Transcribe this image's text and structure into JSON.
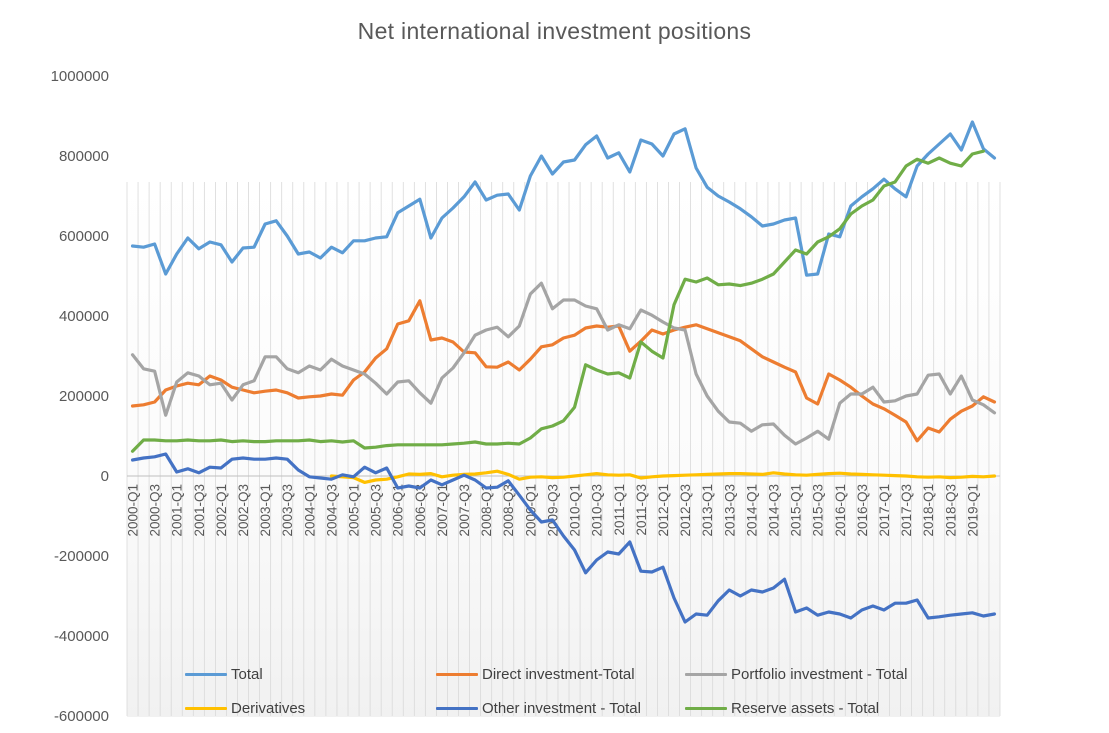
{
  "chart_data": {
    "type": "line",
    "title": "Net international investment positions",
    "xlabel": "",
    "ylabel": "",
    "ylim": [
      -600000,
      1000000
    ],
    "yticks": [
      -600000,
      -400000,
      -200000,
      0,
      200000,
      400000,
      600000,
      800000,
      1000000
    ],
    "ytick_labels": [
      "-600000",
      "-400000",
      "-200000",
      "0",
      "200000",
      "400000",
      "600000",
      "800000",
      "1000000"
    ],
    "grid": "vertical lines at each category",
    "legend_position": "bottom",
    "x": [
      "2000-Q1",
      "2000-Q2",
      "2000-Q3",
      "2000-Q4",
      "2001-Q1",
      "2001-Q2",
      "2001-Q3",
      "2001-Q4",
      "2002-Q1",
      "2002-Q2",
      "2002-Q3",
      "2002-Q4",
      "2003-Q1",
      "2003-Q2",
      "2003-Q3",
      "2003-Q4",
      "2004-Q1",
      "2004-Q2",
      "2004-Q3",
      "2004-Q4",
      "2005-Q1",
      "2005-Q2",
      "2005-Q3",
      "2005-Q4",
      "2006-Q1",
      "2006-Q2",
      "2006-Q3",
      "2006-Q4",
      "2007-Q1",
      "2007-Q2",
      "2007-Q3",
      "2007-Q4",
      "2008-Q1",
      "2008-Q2",
      "2008-Q3",
      "2008-Q4",
      "2009-Q1",
      "2009-Q2",
      "2009-Q3",
      "2009-Q4",
      "2010-Q1",
      "2010-Q2",
      "2010-Q3",
      "2010-Q4",
      "2011-Q1",
      "2011-Q2",
      "2011-Q3",
      "2011-Q4",
      "2012-Q1",
      "2012-Q2",
      "2012-Q3",
      "2012-Q4",
      "2013-Q1",
      "2013-Q2",
      "2013-Q3",
      "2013-Q4",
      "2014-Q1",
      "2014-Q2",
      "2014-Q3",
      "2014-Q4",
      "2015-Q1",
      "2015-Q2",
      "2015-Q3",
      "2015-Q4",
      "2016-Q1",
      "2016-Q2",
      "2016-Q3",
      "2016-Q4",
      "2017-Q1",
      "2017-Q2",
      "2017-Q3",
      "2017-Q4",
      "2018-Q1",
      "2018-Q2",
      "2018-Q3",
      "2018-Q4",
      "2019-Q1",
      "2019-Q2",
      "2019-Q3"
    ],
    "x_tick_labels": [
      "2000-Q1",
      "2000-Q3",
      "2001-Q1",
      "2001-Q3",
      "2002-Q1",
      "2002-Q3",
      "2003-Q1",
      "2003-Q3",
      "2004-Q1",
      "2004-Q3",
      "2005-Q1",
      "2005-Q3",
      "2006-Q1",
      "2006-Q3",
      "2007-Q1",
      "2007-Q3",
      "2008-Q1",
      "2008-Q3",
      "2009-Q1",
      "2009-Q3",
      "2010-Q1",
      "2010-Q3",
      "2011-Q1",
      "2011-Q3",
      "2012-Q1",
      "2012-Q3",
      "2013-Q1",
      "2013-Q3",
      "2014-Q1",
      "2014-Q3",
      "2015-Q1",
      "2015-Q3",
      "2016-Q1",
      "2016-Q3",
      "2017-Q1",
      "2017-Q3",
      "2018-Q1",
      "2018-Q3",
      "2019-Q1"
    ],
    "series": [
      {
        "name": "Total",
        "color": "#5b9bd5",
        "values": [
          575000,
          572000,
          580000,
          505000,
          555000,
          595000,
          568000,
          585000,
          578000,
          535000,
          570000,
          572000,
          630000,
          638000,
          600000,
          555000,
          560000,
          545000,
          572000,
          558000,
          588000,
          588000,
          595000,
          598000,
          658000,
          675000,
          692000,
          595000,
          645000,
          670000,
          698000,
          735000,
          690000,
          702000,
          705000,
          665000,
          750000,
          800000,
          755000,
          785000,
          790000,
          828000,
          850000,
          795000,
          808000,
          760000,
          840000,
          830000,
          800000,
          855000,
          868000,
          770000,
          722000,
          700000,
          685000,
          668000,
          648000,
          625000,
          630000,
          640000,
          645000,
          502000,
          505000,
          605000,
          598000,
          675000,
          698000,
          718000,
          742000,
          718000,
          698000,
          775000,
          805000,
          830000,
          855000,
          815000,
          885000,
          818000,
          795000
        ]
      },
      {
        "name": "Direct investment-Total",
        "color": "#ed7d31",
        "values": [
          175000,
          178000,
          185000,
          215000,
          225000,
          232000,
          228000,
          250000,
          240000,
          222000,
          215000,
          208000,
          212000,
          215000,
          208000,
          195000,
          198000,
          200000,
          205000,
          202000,
          240000,
          260000,
          295000,
          318000,
          380000,
          388000,
          438000,
          340000,
          345000,
          335000,
          310000,
          308000,
          273000,
          272000,
          285000,
          265000,
          292000,
          323000,
          328000,
          345000,
          352000,
          370000,
          375000,
          372000,
          375000,
          312000,
          337000,
          365000,
          355000,
          365000,
          372000,
          378000,
          368000,
          358000,
          348000,
          338000,
          318000,
          298000,
          285000,
          272000,
          260000,
          195000,
          180000,
          255000,
          240000,
          222000,
          200000,
          180000,
          168000,
          152000,
          135000,
          88000,
          120000,
          110000,
          142000,
          162000,
          175000,
          198000,
          185000
        ]
      },
      {
        "name": "Portfolio investment - Total",
        "color": "#a5a5a5",
        "values": [
          303000,
          268000,
          262000,
          152000,
          235000,
          258000,
          250000,
          228000,
          232000,
          190000,
          228000,
          238000,
          298000,
          298000,
          268000,
          258000,
          275000,
          265000,
          292000,
          275000,
          265000,
          255000,
          232000,
          205000,
          235000,
          238000,
          208000,
          182000,
          245000,
          270000,
          308000,
          352000,
          365000,
          372000,
          348000,
          375000,
          455000,
          482000,
          418000,
          440000,
          440000,
          425000,
          418000,
          365000,
          378000,
          368000,
          415000,
          402000,
          385000,
          370000,
          365000,
          255000,
          200000,
          162000,
          135000,
          132000,
          112000,
          128000,
          130000,
          102000,
          80000,
          95000,
          112000,
          92000,
          182000,
          205000,
          205000,
          222000,
          185000,
          188000,
          200000,
          205000,
          252000,
          255000,
          205000,
          250000,
          190000,
          178000,
          158000
        ]
      },
      {
        "name": "Derivatives",
        "color": "#ffc000",
        "values": [
          null,
          null,
          null,
          null,
          null,
          null,
          null,
          null,
          null,
          null,
          null,
          null,
          null,
          null,
          null,
          null,
          null,
          null,
          0,
          -2000,
          -4000,
          -16000,
          -10000,
          -8000,
          -2000,
          5000,
          4000,
          6000,
          -2000,
          2000,
          4000,
          5000,
          8000,
          12000,
          4000,
          -8000,
          -3000,
          -2000,
          -4000,
          -3000,
          0,
          3000,
          6000,
          3000,
          2000,
          3000,
          -5000,
          -2000,
          0,
          1000,
          2000,
          3000,
          4000,
          5000,
          6000,
          6000,
          5000,
          4000,
          8000,
          5000,
          3000,
          2000,
          4000,
          6000,
          7000,
          5000,
          4000,
          3000,
          2000,
          1000,
          0,
          -2000,
          -3000,
          -2000,
          -4000,
          -3000,
          -1000,
          -2000,
          0
        ]
      },
      {
        "name": "Other investment - Total",
        "color": "#4472c4",
        "values": [
          40000,
          45000,
          48000,
          55000,
          10000,
          18000,
          8000,
          22000,
          20000,
          42000,
          45000,
          42000,
          42000,
          45000,
          42000,
          15000,
          -2000,
          -5000,
          -8000,
          3000,
          -2000,
          22000,
          8000,
          20000,
          -30000,
          -25000,
          -30000,
          -10000,
          -22000,
          -10000,
          2000,
          -10000,
          -30000,
          -28000,
          -12000,
          -48000,
          -85000,
          -115000,
          -110000,
          -150000,
          -185000,
          -242000,
          -210000,
          -190000,
          -195000,
          -165000,
          -238000,
          -240000,
          -228000,
          -305000,
          -365000,
          -345000,
          -348000,
          -312000,
          -285000,
          -300000,
          -285000,
          -290000,
          -280000,
          -258000,
          -340000,
          -330000,
          -348000,
          -340000,
          -345000,
          -355000,
          -335000,
          -325000,
          -335000,
          -318000,
          -318000,
          -310000,
          -355000,
          -352000,
          -348000,
          -345000,
          -342000,
          -350000,
          -345000
        ]
      },
      {
        "name": "Reserve assets - Total",
        "color": "#70ad47",
        "values": [
          62000,
          90000,
          90000,
          88000,
          88000,
          90000,
          88000,
          88000,
          90000,
          86000,
          88000,
          86000,
          86000,
          88000,
          88000,
          88000,
          90000,
          86000,
          88000,
          85000,
          88000,
          70000,
          72000,
          76000,
          78000,
          78000,
          78000,
          78000,
          78000,
          80000,
          82000,
          85000,
          80000,
          80000,
          82000,
          80000,
          95000,
          118000,
          125000,
          138000,
          172000,
          278000,
          265000,
          255000,
          258000,
          245000,
          335000,
          312000,
          295000,
          428000,
          492000,
          485000,
          495000,
          478000,
          480000,
          476000,
          482000,
          492000,
          505000,
          535000,
          565000,
          555000,
          585000,
          598000,
          618000,
          655000,
          675000,
          690000,
          725000,
          735000,
          775000,
          792000,
          782000,
          795000,
          782000,
          775000,
          805000,
          812000,
          null
        ]
      }
    ]
  }
}
